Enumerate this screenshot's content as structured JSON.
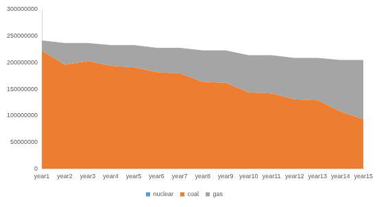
{
  "chart_data": {
    "type": "area",
    "stacked": true,
    "legend": "bottom",
    "grid": false,
    "categories": [
      "year1",
      "year2",
      "year3",
      "year4",
      "year5",
      "year6",
      "year7",
      "year8",
      "year9",
      "year10",
      "year11",
      "year12",
      "year13",
      "year14",
      "year15"
    ],
    "series": [
      {
        "name": "nuclear",
        "color": "#5b9bd5",
        "values": [
          0,
          0,
          0,
          0,
          0,
          0,
          0,
          0,
          0,
          0,
          0,
          0,
          0,
          0,
          0
        ]
      },
      {
        "name": "coal",
        "color": "#ed7d31",
        "values": [
          222000000,
          196000000,
          203000000,
          194000000,
          191000000,
          182000000,
          180000000,
          164000000,
          162000000,
          144000000,
          142000000,
          131000000,
          129000000,
          108000000,
          93000000
        ]
      },
      {
        "name": "gas",
        "color": "#a5a5a5",
        "values": [
          20000000,
          41000000,
          34000000,
          39000000,
          42000000,
          46000000,
          48000000,
          59000000,
          61000000,
          70000000,
          72000000,
          78000000,
          80000000,
          97000000,
          112000000
        ]
      }
    ],
    "ylim": [
      0,
      300000000
    ],
    "yticks": [
      0,
      50000000,
      100000000,
      150000000,
      200000000,
      250000000,
      300000000
    ]
  }
}
